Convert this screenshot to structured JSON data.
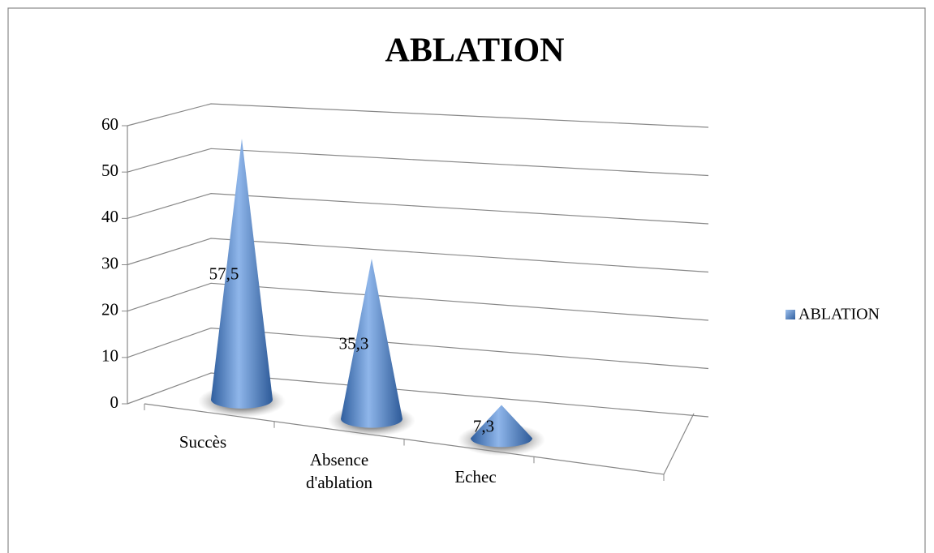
{
  "chart_data": {
    "type": "cone3d",
    "title": "ABLATION",
    "categories": [
      "Succès",
      "Absence d'ablation",
      "Echec"
    ],
    "series": [
      {
        "name": "ABLATION",
        "color": "#4a7fc8",
        "values": [
          57.5,
          35.3,
          7.3
        ],
        "value_labels": [
          "57,5",
          "35,3",
          "7,3"
        ]
      }
    ],
    "ylim": [
      0,
      60
    ],
    "yticks": [
      0,
      10,
      20,
      30,
      40,
      50,
      60
    ],
    "grid": true,
    "legend": "right"
  }
}
